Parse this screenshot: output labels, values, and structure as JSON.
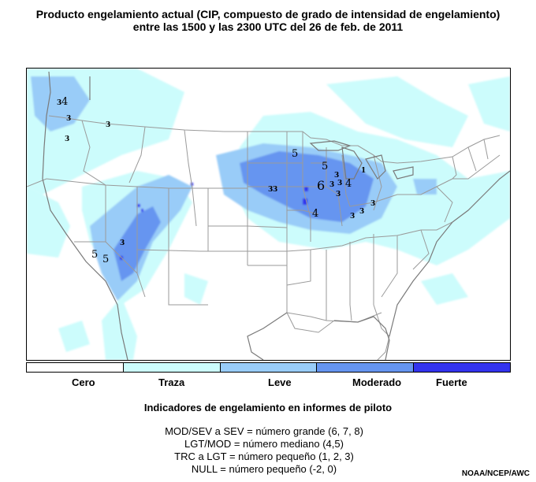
{
  "title_line1": "Producto engelamiento actual (CIP, compuesto de grado de intensidad de engelamiento)",
  "title_line2": "entre las 1500 y las 2300 UTC del 26 de feb. de 2011",
  "legend": {
    "categories": [
      {
        "label": "Cero",
        "color": "#ffffff"
      },
      {
        "label": "Traza",
        "color": "#ccfcfc"
      },
      {
        "label": "Leve",
        "color": "#99ccf8"
      },
      {
        "label": "Moderado",
        "color": "#6695f0"
      },
      {
        "label": "Fuerte",
        "color": "#3333ee"
      }
    ]
  },
  "pirep": {
    "title": "Indicadores de engelamiento en informes de piloto",
    "lines": [
      "MOD/SEV a SEV = número grande (6, 7, 8)",
      "LGT/MOD = número mediano (4,5)",
      "TRC a LGT = número pequeño (1, 2, 3)",
      "NULL = número pequeño (-2, 0)"
    ]
  },
  "pilot_reports": [
    {
      "value": "3",
      "size": "small"
    },
    {
      "value": "4",
      "size": "medium"
    },
    {
      "value": "3",
      "size": "small"
    },
    {
      "value": "3",
      "size": "small"
    },
    {
      "value": "3",
      "size": "small"
    },
    {
      "value": "5",
      "size": "medium"
    },
    {
      "value": "5",
      "size": "medium"
    },
    {
      "value": "3",
      "size": "small"
    },
    {
      "value": "1",
      "size": "small"
    },
    {
      "value": "6",
      "size": "large"
    },
    {
      "value": "3",
      "size": "small"
    },
    {
      "value": "4",
      "size": "medium"
    },
    {
      "value": "3",
      "size": "small"
    },
    {
      "value": "3",
      "size": "small"
    },
    {
      "value": "3",
      "size": "small"
    },
    {
      "value": "3",
      "size": "small"
    },
    {
      "value": "4",
      "size": "medium"
    },
    {
      "value": "3",
      "size": "small"
    },
    {
      "value": "3",
      "size": "small"
    },
    {
      "value": "3",
      "size": "small"
    },
    {
      "value": "5",
      "size": "medium"
    },
    {
      "value": "5",
      "size": "medium"
    },
    {
      "value": "3",
      "size": "small"
    }
  ],
  "credit": "NOAA/NCEP/AWC"
}
